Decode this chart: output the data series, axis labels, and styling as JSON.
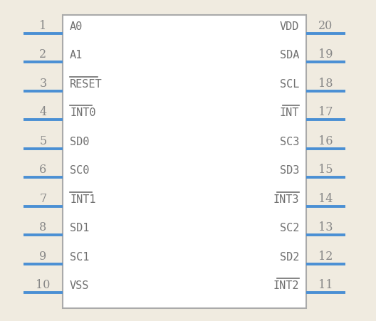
{
  "bg_color": "#f0ebe0",
  "box_color": "#aaaaaa",
  "box_fill": "#ffffff",
  "pin_line_color": "#4a8fd4",
  "text_color": "#707070",
  "pin_number_color": "#888888",
  "left_pins": [
    {
      "num": 1,
      "label": "A0",
      "overline": false
    },
    {
      "num": 2,
      "label": "A1",
      "overline": false
    },
    {
      "num": 3,
      "label": "RESET",
      "overline": true
    },
    {
      "num": 4,
      "label": "INT0",
      "overline": true
    },
    {
      "num": 5,
      "label": "SD0",
      "overline": false
    },
    {
      "num": 6,
      "label": "SC0",
      "overline": false
    },
    {
      "num": 7,
      "label": "INT1",
      "overline": true
    },
    {
      "num": 8,
      "label": "SD1",
      "overline": false
    },
    {
      "num": 9,
      "label": "SC1",
      "overline": false
    },
    {
      "num": 10,
      "label": "VSS",
      "overline": false
    }
  ],
  "right_pins": [
    {
      "num": 20,
      "label": "VDD",
      "overline": false
    },
    {
      "num": 19,
      "label": "SDA",
      "overline": false
    },
    {
      "num": 18,
      "label": "SCL",
      "overline": false
    },
    {
      "num": 17,
      "label": "INT",
      "overline": true
    },
    {
      "num": 16,
      "label": "SC3",
      "overline": false
    },
    {
      "num": 15,
      "label": "SD3",
      "overline": false
    },
    {
      "num": 14,
      "label": "INT3",
      "overline": true
    },
    {
      "num": 13,
      "label": "SC2",
      "overline": false
    },
    {
      "num": 12,
      "label": "SD2",
      "overline": false
    },
    {
      "num": 11,
      "label": "INT2",
      "overline": true
    }
  ]
}
